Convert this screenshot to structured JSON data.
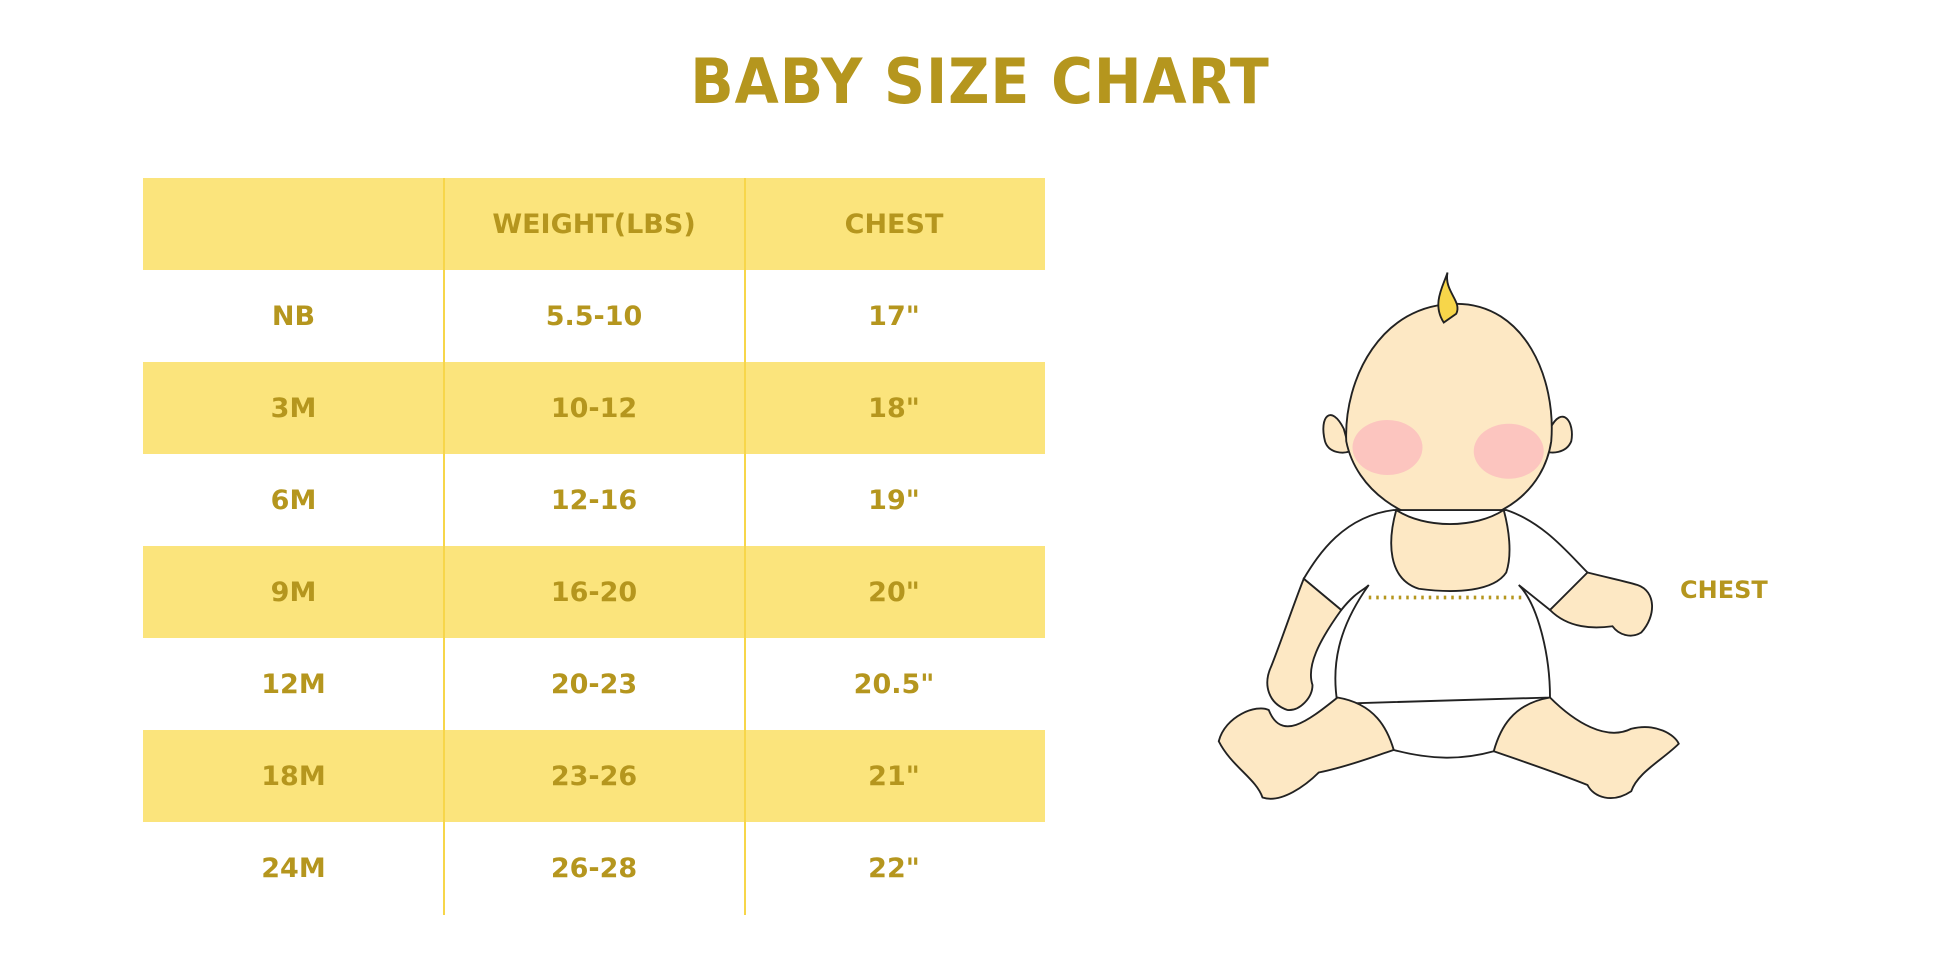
{
  "title": "BABY SIZE CHART",
  "table": {
    "headers": [
      "",
      "WEIGHT(LBS)",
      "CHEST"
    ],
    "rows": [
      [
        "NB",
        "5.5-10",
        "17\""
      ],
      [
        "3M",
        "10-12",
        "18\""
      ],
      [
        "6M",
        "12-16",
        "19\""
      ],
      [
        "9M",
        "16-20",
        "20\""
      ],
      [
        "12M",
        "20-23",
        "20.5\""
      ],
      [
        "18M",
        "23-26",
        "21\""
      ],
      [
        "24M",
        "26-28",
        "22\""
      ]
    ]
  },
  "illustration": {
    "label": "CHEST",
    "icon": "baby-illustration"
  },
  "colors": {
    "text": "#B5961E",
    "band": "#FBE47C",
    "skin": "#FDE8C4"
  }
}
